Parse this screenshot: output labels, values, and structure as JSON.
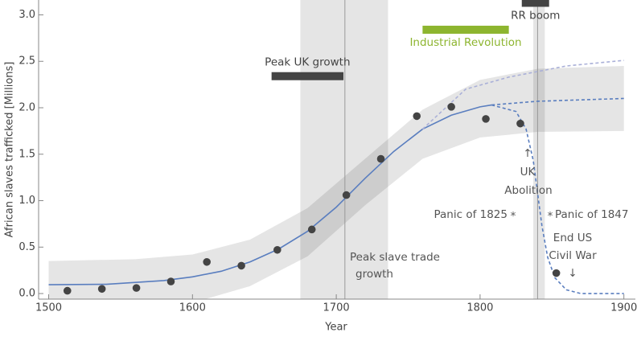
{
  "chart_data": {
    "type": "scatter",
    "x_label": "Year",
    "y_label": "African slaves trafficked [Millions]",
    "xlim": [
      1493,
      1908
    ],
    "ylim": [
      -0.06,
      3.16
    ],
    "xticks": [
      1500,
      1600,
      1700,
      1800,
      1900
    ],
    "yticks": [
      {
        "value": 0,
        "label": "0.0"
      },
      0.5,
      {
        "value": 1,
        "label": "1.0"
      },
      1.5,
      {
        "value": 2,
        "label": "2.0"
      },
      2.5,
      {
        "value": 3,
        "label": "3.0"
      }
    ],
    "points": {
      "color": "#444444",
      "x": [
        1513,
        1537,
        1561,
        1585,
        1610,
        1634,
        1659,
        1683,
        1707,
        1731,
        1756,
        1780,
        1804,
        1828,
        1853
      ],
      "values": [
        0.03,
        0.05,
        0.06,
        0.13,
        0.34,
        0.3,
        0.47,
        0.69,
        1.06,
        1.45,
        1.91,
        2.01,
        1.88,
        1.83,
        0.22
      ]
    },
    "band": {
      "color": "rgba(0,0,0,0.1)",
      "x": [
        1500,
        1560,
        1600,
        1640,
        1680,
        1720,
        1760,
        1800,
        1840,
        1900
      ],
      "upper": [
        0.35,
        0.37,
        0.42,
        0.58,
        0.92,
        1.45,
        1.98,
        2.3,
        2.42,
        2.45
      ],
      "lower": [
        -0.17,
        -0.15,
        -0.1,
        0.08,
        0.4,
        0.95,
        1.45,
        1.68,
        1.74,
        1.75
      ]
    },
    "lines": [
      {
        "color": "#5a7ebf",
        "dashed": false,
        "x": [
          1500,
          1540,
          1580,
          1600,
          1620,
          1640,
          1660,
          1680,
          1700,
          1720,
          1740,
          1760,
          1780,
          1800,
          1808
        ],
        "values": [
          0.095,
          0.1,
          0.14,
          0.18,
          0.24,
          0.34,
          0.48,
          0.67,
          0.93,
          1.24,
          1.53,
          1.77,
          1.92,
          2.01,
          2.03
        ]
      },
      {
        "color": "#5a7ebf",
        "dashed": true,
        "x": [
          1808,
          1840,
          1880,
          1900
        ],
        "values": [
          2.03,
          2.07,
          2.09,
          2.1
        ]
      },
      {
        "color": "#aab0d8",
        "dashed": true,
        "x": [
          1760,
          1790,
          1820,
          1860,
          1900
        ],
        "values": [
          1.77,
          2.2,
          2.33,
          2.45,
          2.51
        ]
      },
      {
        "color": "#5a7ebf",
        "dashed": true,
        "x": [
          1808,
          1825,
          1832,
          1837,
          1840,
          1843,
          1847,
          1852,
          1860,
          1870,
          1900
        ],
        "values": [
          2.03,
          1.96,
          1.77,
          1.43,
          1.08,
          0.73,
          0.39,
          0.17,
          0.04,
          0,
          0
        ]
      }
    ],
    "shaded_periods": [
      {
        "start": 1675,
        "end": 1736
      },
      {
        "start": 1837,
        "end": 1845
      }
    ],
    "reference_lines": [
      1706,
      1840
    ],
    "periods": [
      {
        "label": "Peak UK growth",
        "start": 1655,
        "end": 1705,
        "y": 2.34,
        "color": "#444444"
      },
      {
        "label": "Industrial Revolution",
        "start": 1760,
        "end": 1820,
        "y": 2.84,
        "color": "#8db52f"
      },
      {
        "label": "RR boom",
        "start": 1829,
        "end": 1848,
        "y": 3.13,
        "color": "#444444"
      }
    ],
    "annotations": [
      "Peak slave trade",
      "growth",
      "↑",
      "UK",
      "Abolition",
      "Panic of 1825",
      "*",
      "*",
      "Panic of 1847",
      "End US",
      "Civil War",
      "↓"
    ]
  }
}
